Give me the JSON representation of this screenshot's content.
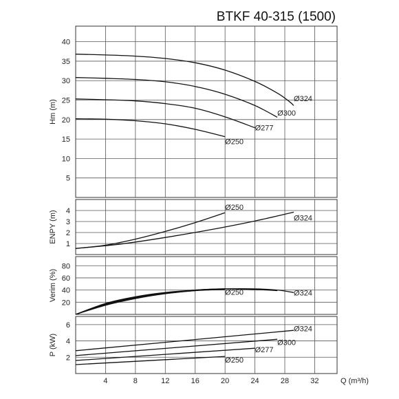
{
  "title": "BTKF 40-315 (1500)",
  "xlabel": "Q (m³/h)",
  "chart_data": [
    {
      "type": "line",
      "name": "head",
      "ylabel": "Hm (m)",
      "xlim": [
        0,
        35
      ],
      "ylim": [
        0,
        44
      ],
      "yticks": [
        5,
        10,
        15,
        20,
        25,
        30,
        35,
        40
      ],
      "series": [
        {
          "name": "Ø324",
          "label": "Ø324",
          "label_at": [
            29.2,
            24.7
          ],
          "x": [
            0,
            4,
            8,
            12,
            16,
            20,
            24,
            27,
            28.5,
            29.2
          ],
          "y": [
            36.8,
            36.6,
            36.3,
            35.7,
            34.6,
            32.7,
            29.8,
            26.8,
            24.8,
            23.6
          ]
        },
        {
          "name": "Ø300",
          "label": "Ø300",
          "label_at": [
            27.0,
            21.0
          ],
          "x": [
            0,
            4,
            8,
            12,
            16,
            20,
            24,
            27.0
          ],
          "y": [
            30.8,
            30.6,
            30.3,
            29.7,
            28.5,
            26.5,
            23.6,
            20.6
          ]
        },
        {
          "name": "Ø277",
          "label": "Ø277",
          "label_at": [
            24.0,
            17.2
          ],
          "x": [
            0,
            4,
            8,
            12,
            16,
            20,
            24.0
          ],
          "y": [
            25.3,
            25.1,
            24.8,
            24.1,
            22.9,
            20.7,
            17.9
          ]
        },
        {
          "name": "Ø250",
          "label": "Ø250",
          "label_at": [
            20.0,
            13.7
          ],
          "x": [
            0,
            4,
            8,
            12,
            16,
            20.0
          ],
          "y": [
            20.2,
            20.1,
            19.7,
            18.9,
            17.5,
            15.6
          ]
        }
      ]
    },
    {
      "type": "line",
      "name": "npsh",
      "ylabel": "ENPY (m)",
      "xlim": [
        0,
        35
      ],
      "ylim": [
        0,
        5
      ],
      "yticks": [
        1,
        2,
        3,
        4
      ],
      "series": [
        {
          "name": "Ø250",
          "label": "Ø250",
          "label_at": [
            20.0,
            4.05
          ],
          "x": [
            0,
            4,
            8,
            12,
            16,
            20
          ],
          "y": [
            0.55,
            0.85,
            1.4,
            2.1,
            2.9,
            3.8
          ]
        },
        {
          "name": "Ø324",
          "label": "Ø324",
          "label_at": [
            29.2,
            3.1
          ],
          "x": [
            0,
            6,
            12,
            18,
            24,
            29.2
          ],
          "y": [
            0.55,
            0.95,
            1.55,
            2.25,
            3.05,
            3.85
          ]
        }
      ]
    },
    {
      "type": "line",
      "name": "efficiency",
      "ylabel": "Verim (%)",
      "xlim": [
        0,
        35
      ],
      "ylim": [
        0,
        95
      ],
      "yticks": [
        20,
        40,
        60,
        80
      ],
      "series": [
        {
          "name": "Ø324",
          "label": "Ø324",
          "label_at": [
            29.2,
            31.0
          ],
          "x": [
            0,
            4,
            8,
            12,
            16,
            20,
            24,
            27,
            29.2
          ],
          "y": [
            0,
            18,
            29,
            36,
            40,
            42,
            42,
            40,
            36
          ]
        },
        {
          "name": "Ø300",
          "x": [
            0,
            4,
            8,
            12,
            16,
            20,
            24,
            27
          ],
          "y": [
            0,
            17,
            28,
            35,
            40,
            42,
            41,
            39
          ]
        },
        {
          "name": "Ø277",
          "x": [
            0,
            4,
            8,
            12,
            16,
            20,
            24
          ],
          "y": [
            0,
            16,
            27,
            34,
            39,
            42,
            41
          ]
        },
        {
          "name": "Ø250",
          "label": "Ø250",
          "label_at": [
            20.0,
            32.0
          ],
          "x": [
            0,
            4,
            8,
            12,
            16,
            20
          ],
          "y": [
            0,
            15,
            26,
            34,
            39,
            41
          ]
        }
      ]
    },
    {
      "type": "line",
      "name": "power",
      "ylabel": "P (kW)",
      "xlim": [
        0,
        35
      ],
      "ylim": [
        0,
        7
      ],
      "yticks": [
        2,
        4,
        6
      ],
      "xticks": [
        4,
        8,
        12,
        16,
        20,
        24,
        28,
        32
      ],
      "series": [
        {
          "name": "Ø324",
          "label": "Ø324",
          "label_at": [
            29.2,
            5.2
          ],
          "x": [
            0,
            29.2
          ],
          "y": [
            2.8,
            5.3
          ]
        },
        {
          "name": "Ø300",
          "label": "Ø300",
          "label_at": [
            27.0,
            3.5
          ],
          "x": [
            0,
            27.0
          ],
          "y": [
            2.2,
            4.2
          ]
        },
        {
          "name": "Ø277",
          "label": "Ø277",
          "label_at": [
            24.0,
            2.6
          ],
          "x": [
            0,
            24.0
          ],
          "y": [
            1.6,
            3.1
          ]
        },
        {
          "name": "Ø250",
          "label": "Ø250",
          "label_at": [
            20.0,
            1.35
          ],
          "x": [
            0,
            20.0
          ],
          "y": [
            1.1,
            2.1
          ]
        }
      ]
    }
  ]
}
